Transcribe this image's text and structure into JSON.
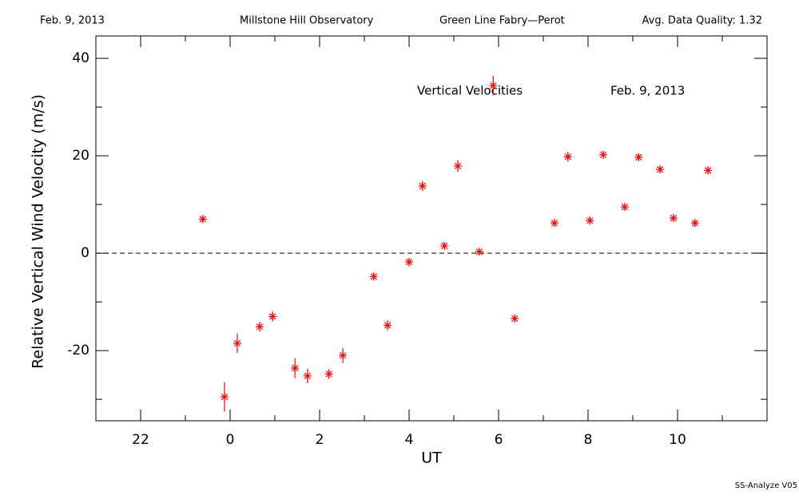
{
  "chart_data": {
    "type": "scatter",
    "header": {
      "date": "Feb. 9, 2013",
      "observatory": "Millstone Hill Observatory",
      "instrument": "Green Line Fabry—Perot",
      "quality": "Avg. Data Quality: 1.32"
    },
    "annotations": [
      "Vertical Velocities",
      "Feb. 9, 2013"
    ],
    "footer": "SS-Analyze V05",
    "xlabel": "UT",
    "ylabel": "Relative Vertical Wind Velocity (m/s)",
    "color": "#ff0000",
    "marker": "asterisk",
    "reference_line": 0,
    "xlim": [
      -3,
      12
    ],
    "ylim": [
      -34.4,
      44.6
    ],
    "xticks": [
      {
        "value": -2,
        "label": "22"
      },
      0,
      2,
      4,
      6,
      8,
      10
    ],
    "xminor_ticks": [
      -3,
      -1,
      1,
      3,
      5,
      7,
      9,
      11
    ],
    "yticks": [
      -20,
      0,
      20,
      40
    ],
    "yminor_ticks": [
      -30,
      -10,
      10,
      30
    ],
    "x": [
      -0.61,
      -0.125,
      0.16,
      0.66,
      0.95,
      1.45,
      1.73,
      2.21,
      2.52,
      3.21,
      3.52,
      4.0,
      4.3,
      4.79,
      5.09,
      5.57,
      5.88,
      6.36,
      7.25,
      7.55,
      8.04,
      8.34,
      8.82,
      9.13,
      9.61,
      9.91,
      10.39,
      10.68
    ],
    "values": [
      7.0,
      -29.5,
      -18.5,
      -15.1,
      -13.0,
      -23.6,
      -25.2,
      -24.8,
      -21.0,
      -4.8,
      -14.8,
      -1.8,
      13.8,
      1.5,
      17.9,
      0.3,
      34.4,
      -13.4,
      6.2,
      19.8,
      6.7,
      20.2,
      9.5,
      19.7,
      17.2,
      7.2,
      6.2,
      17.0
    ],
    "errors": [
      0.8,
      3.0,
      2.0,
      1.0,
      1.0,
      2.0,
      1.5,
      1.0,
      1.5,
      0.8,
      1.0,
      0.8,
      1.0,
      0.8,
      1.2,
      0.8,
      2.0,
      0.8,
      0.8,
      1.0,
      0.8,
      0.8,
      0.8,
      0.8,
      0.8,
      0.8,
      0.8,
      0.8
    ]
  }
}
